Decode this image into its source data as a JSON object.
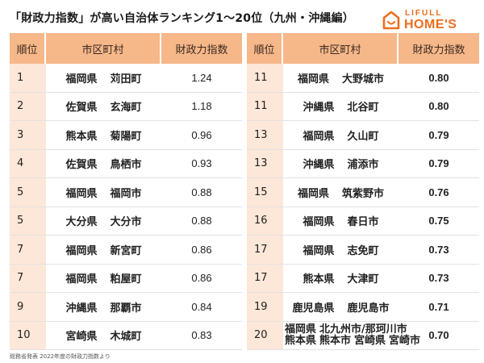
{
  "header": {
    "title": "「財政力指数」が高い自治体ランキング1〜20位（九州・沖縄編）",
    "logo_top": "LIFULL",
    "logo_bottom": "HOME'S"
  },
  "columns": {
    "rank": "順位",
    "municipality": "市区町村",
    "index": "財政力指数"
  },
  "rows_left": [
    {
      "rank": "1",
      "pref": "福岡県",
      "town": "苅田町",
      "value": "1.24"
    },
    {
      "rank": "2",
      "pref": "佐賀県",
      "town": "玄海町",
      "value": "1.18"
    },
    {
      "rank": "3",
      "pref": "熊本県",
      "town": "菊陽町",
      "value": "0.96"
    },
    {
      "rank": "4",
      "pref": "佐賀県",
      "town": "鳥栖市",
      "value": "0.93"
    },
    {
      "rank": "5",
      "pref": "福岡県",
      "town": "福岡市",
      "value": "0.88"
    },
    {
      "rank": "5",
      "pref": "大分県",
      "town": "大分市",
      "value": "0.88"
    },
    {
      "rank": "7",
      "pref": "福岡県",
      "town": "新宮町",
      "value": "0.86"
    },
    {
      "rank": "7",
      "pref": "福岡県",
      "town": "粕屋町",
      "value": "0.86"
    },
    {
      "rank": "9",
      "pref": "沖縄県",
      "town": "那覇市",
      "value": "0.84"
    },
    {
      "rank": "10",
      "pref": "宮崎県",
      "town": "木城町",
      "value": "0.83"
    }
  ],
  "rows_right": [
    {
      "rank": "11",
      "pref": "福岡県",
      "town": "大野城市",
      "value": "0.80"
    },
    {
      "rank": "11",
      "pref": "沖縄県",
      "town": "北谷町",
      "value": "0.80"
    },
    {
      "rank": "13",
      "pref": "福岡県",
      "town": "久山町",
      "value": "0.79"
    },
    {
      "rank": "13",
      "pref": "沖縄県",
      "town": "浦添市",
      "value": "0.79"
    },
    {
      "rank": "15",
      "pref": "福岡県",
      "town": "筑紫野市",
      "value": "0.76"
    },
    {
      "rank": "16",
      "pref": "福岡県",
      "town": "春日市",
      "value": "0.75"
    },
    {
      "rank": "17",
      "pref": "福岡県",
      "town": "志免町",
      "value": "0.73"
    },
    {
      "rank": "17",
      "pref": "熊本県",
      "town": "大津町",
      "value": "0.73"
    },
    {
      "rank": "19",
      "pref": "鹿児島県",
      "town": "鹿児島市",
      "value": "0.71"
    }
  ],
  "row_20": {
    "rank": "20",
    "line1_pref": "福岡県",
    "line1_towns": "北九州市/那珂川市",
    "line2_pref1": "熊本県",
    "line2_town1": "熊本市",
    "line2_pref2": "宮崎県",
    "line2_town2": "宮崎市",
    "value": "0.70"
  },
  "source": "総務省発表 2022年度の財政力指数より",
  "colors": {
    "header_bg": "#F6B789",
    "rank_bg": "#FDE7D8",
    "brand": "#ED6D1F"
  }
}
